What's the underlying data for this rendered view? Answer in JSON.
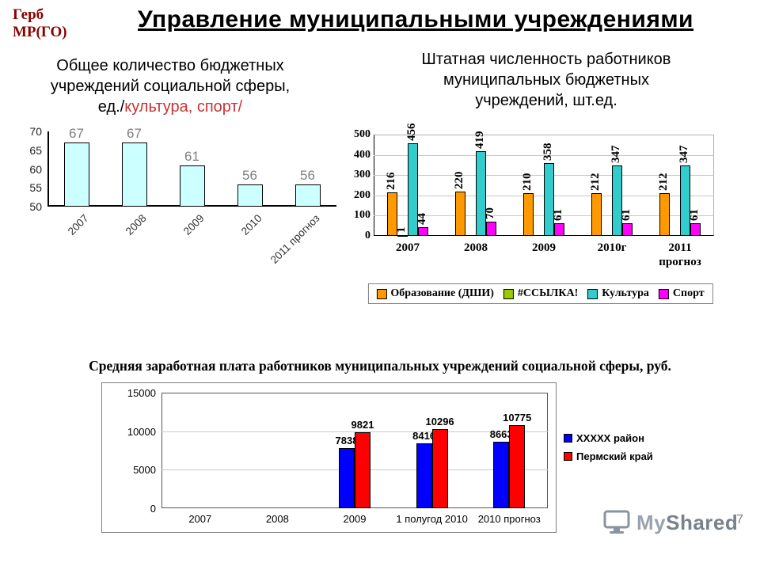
{
  "page": {
    "emblem": "Герб\nМР(ГО)",
    "title": "Управление муниципальными учреждениями",
    "page_number": "7",
    "watermark_my": "My",
    "watermark_shared": "Shared"
  },
  "chart_data": [
    {
      "id": "institutions",
      "type": "bar",
      "title_prefix": "Общее количество бюджетных\nучреждений социальной сферы,\nед./",
      "title_accent": "культура, спорт/",
      "accent_color": "#cc3333",
      "categories": [
        "2007",
        "2008",
        "2009",
        "2010",
        "2011 прогноз"
      ],
      "values": [
        67,
        67,
        61,
        56,
        56
      ],
      "ylim": [
        50,
        70
      ],
      "yticks": [
        50,
        55,
        60,
        65,
        70
      ],
      "bar_color": "#ccffff",
      "value_label_color": "#7f7f7f",
      "grid": false,
      "legend": null
    },
    {
      "id": "staff",
      "type": "bar",
      "title": "Штатная численность работников\nмуниципальных бюджетных\nучреждений, шт.ед.",
      "categories": [
        "2007",
        "2008",
        "2009",
        "2010г",
        "2011\nпрогноз"
      ],
      "series": [
        {
          "name": "Образование (ДШИ)",
          "color": "#ff9900",
          "values": [
            216,
            220,
            210,
            212,
            212
          ]
        },
        {
          "name": "#ССЫЛКА!",
          "color": "#99cc00",
          "values": [
            1,
            null,
            null,
            null,
            null
          ]
        },
        {
          "name": "Культура",
          "color": "#33cccc",
          "values": [
            456,
            419,
            358,
            347,
            347
          ]
        },
        {
          "name": "Спорт",
          "color": "#ff00ff",
          "values": [
            44,
            70,
            61,
            61,
            61
          ]
        }
      ],
      "ylim": [
        0,
        500
      ],
      "yticks": [
        0,
        100,
        200,
        300,
        400,
        500
      ],
      "grid": true,
      "legend_position": "bottom"
    },
    {
      "id": "salary",
      "type": "bar",
      "title": "Средняя заработная плата работников муниципальных учреждений социальной сферы, руб.",
      "categories": [
        "2007",
        "2008",
        "2009",
        "1 полугод 2010",
        "2010 прогноз"
      ],
      "series": [
        {
          "name": "ХХХХХ район",
          "color": "#0000ff",
          "values": [
            null,
            null,
            7838,
            8416,
            8663
          ]
        },
        {
          "name": "Пермский край",
          "color": "#ff0000",
          "values": [
            null,
            null,
            9821,
            10296,
            10775
          ]
        }
      ],
      "ylim": [
        0,
        15000
      ],
      "yticks": [
        0,
        5000,
        10000,
        15000
      ],
      "grid": true,
      "legend_position": "right"
    }
  ]
}
